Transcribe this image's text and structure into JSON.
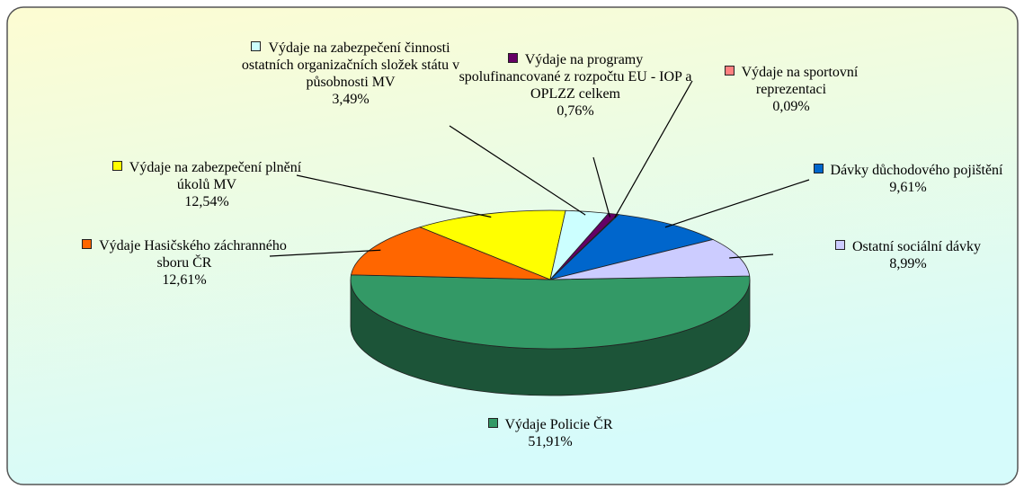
{
  "chart_data": {
    "type": "pie3d",
    "categories": [
      "Výdaje Policie ČR",
      "Výdaje Hasičského záchranného sboru ČR",
      "Výdaje na zabezpečení plnění úkolů MV",
      "Výdaje na zabezpečení činnosti ostatních organizačních složek státu v působnosti MV",
      "Výdaje na programy spolufinancované z rozpočtu EU - IOP a OPLZZ celkem",
      "Výdaje na sportovní reprezentaci",
      "Dávky důchodového pojištění",
      "Ostatní sociální dávky"
    ],
    "values": [
      51.91,
      12.61,
      12.54,
      3.49,
      0.76,
      0.09,
      9.61,
      8.99
    ],
    "value_labels": [
      "51,91%",
      "12,61%",
      "12,54%",
      "3,49%",
      "0,76%",
      "0,09%",
      "9,61%",
      "8,99%"
    ],
    "colors": [
      "#339966",
      "#ff6600",
      "#ffff00",
      "#ccffff",
      "#660066",
      "#ff8080",
      "#0066cc",
      "#ccccff"
    ]
  }
}
